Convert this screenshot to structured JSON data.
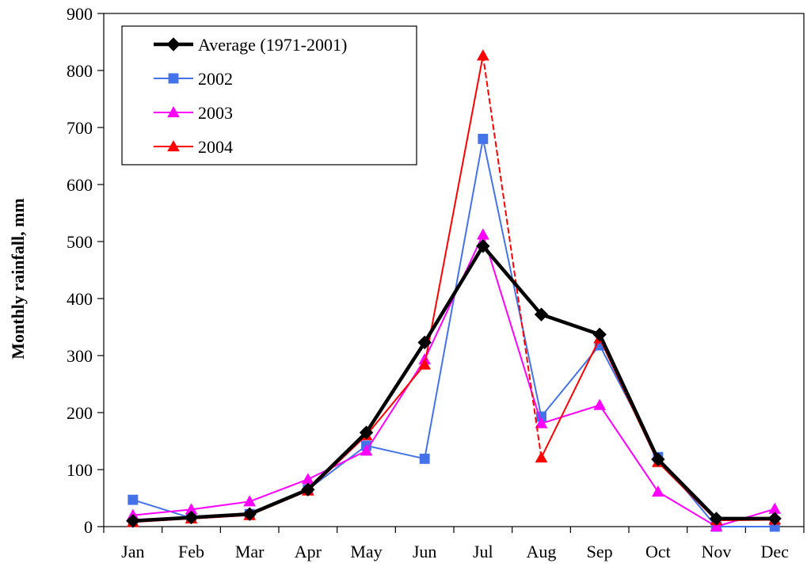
{
  "chart_data": {
    "type": "line",
    "title": "",
    "xlabel": "",
    "ylabel": "Monthly rainfall, mm",
    "ylim": [
      0,
      900
    ],
    "yticks": [
      0,
      100,
      200,
      300,
      400,
      500,
      600,
      700,
      800,
      900
    ],
    "categories": [
      "Jan",
      "Feb",
      "Mar",
      "Apr",
      "May",
      "Jun",
      "Jul",
      "Aug",
      "Sep",
      "Oct",
      "Nov",
      "Dec"
    ],
    "legend_position": "top-left",
    "series": [
      {
        "name": "Average (1971-2001)",
        "color": "#000000",
        "marker": "diamond",
        "line_style": "solid",
        "values": [
          10,
          16,
          22,
          65,
          165,
          323,
          492,
          372,
          337,
          118,
          14,
          14
        ]
      },
      {
        "name": "2002",
        "color": "#4472E8",
        "marker": "square",
        "line_style": "solid",
        "values": [
          47,
          15,
          22,
          65,
          142,
          119,
          680,
          193,
          318,
          122,
          0,
          0
        ]
      },
      {
        "name": "2003",
        "color": "#FF00FF",
        "marker": "triangle",
        "line_style": "solid",
        "values": [
          20,
          30,
          44,
          83,
          133,
          293,
          512,
          181,
          213,
          61,
          0,
          31
        ]
      },
      {
        "name": "2004",
        "color": "#FF0000",
        "marker": "triangle",
        "line_style": "solid",
        "dashed_segments": [
          [
            6,
            7
          ]
        ],
        "values": [
          8,
          14,
          20,
          63,
          160,
          284,
          826,
          121,
          330,
          113,
          11,
          12
        ]
      }
    ]
  }
}
